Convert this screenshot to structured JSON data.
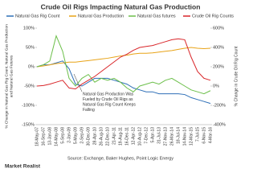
{
  "chart_data": {
    "type": "line",
    "title": "Crude Oil Rigs Impacting Natural Gas Production",
    "ylabel": [
      "% Change in Natural Gas Rig Count, Natural Gas Production",
      "and Natural Gas Futures"
    ],
    "y2label": "% Change in Crude Oil Rig Count",
    "annotation": [
      "Natural Gas Production Was",
      "Fueled by Crude Oil Rigs  as",
      "Natural Gas Rig Count Keeps",
      "Falling"
    ],
    "source": "Source: Exchange, Baker Hughes, Point Logic Energy",
    "brand": "Market Realist",
    "categories": [
      "18-May-07",
      "16-Sep-07",
      "13-Jan-08",
      "14-May-08",
      "5-Sep-08",
      "2-Jan-09",
      "5-May-09",
      "2-Sep-09",
      "30-Dec-09",
      "28-Apr-10",
      "26-Aug-10",
      "22-Dec-10",
      "21-Apr-11",
      "19-Aug-11",
      "16-Dec-11",
      "12-Apr-12",
      "10-Aug-12",
      "7-Dec-12",
      "5-Apr-13",
      "31-Jul-13",
      "27-Nov-13",
      "26-Mar-14",
      "18-Jul-14",
      "14-Nov-14",
      "12-Mar-15",
      "7-Jul-15",
      "6-Nov-15",
      "4-Mar-16"
    ],
    "series": [
      {
        "name": "Natural Gas Rig Count",
        "color": "#2e6fb7",
        "axis": "y",
        "values": [
          0,
          5,
          5,
          10,
          15,
          -5,
          -45,
          -50,
          -40,
          -30,
          -30,
          -30,
          -35,
          -40,
          -45,
          -55,
          -60,
          -65,
          -65,
          -70,
          -70,
          -70,
          -70,
          -72,
          -80,
          -85,
          -90,
          -95
        ]
      },
      {
        "name": "Natural Gas Production",
        "color": "#e8a317",
        "axis": "y",
        "values": [
          0,
          2,
          5,
          8,
          10,
          12,
          12,
          14,
          16,
          18,
          20,
          22,
          25,
          28,
          30,
          33,
          35,
          35,
          36,
          38,
          40,
          42,
          45,
          48,
          50,
          48,
          47,
          48
        ]
      },
      {
        "name": "Natural Gas futures",
        "color": "#6cbf4a",
        "axis": "y",
        "values": [
          0,
          5,
          15,
          80,
          40,
          -30,
          -50,
          -30,
          -20,
          -40,
          -30,
          -35,
          -30,
          -40,
          -55,
          -65,
          -50,
          -45,
          -40,
          -45,
          -35,
          -30,
          -40,
          -50,
          -60,
          -65,
          -70,
          -62
        ]
      },
      {
        "name": "Crude Oil Rig Counts",
        "color": "#d9262a",
        "axis": "y2",
        "values": [
          0,
          5,
          20,
          40,
          60,
          -20,
          -30,
          20,
          60,
          100,
          150,
          200,
          250,
          300,
          330,
          370,
          400,
          410,
          420,
          440,
          460,
          480,
          490,
          480,
          300,
          150,
          80,
          60
        ]
      }
    ],
    "ylim": [
      -150,
      100
    ],
    "yticks": [
      {
        "value": -150,
        "label": "-150%"
      },
      {
        "value": -100,
        "label": "-100%"
      },
      {
        "value": -50,
        "label": "-50%"
      },
      {
        "value": 0,
        "label": "0%"
      },
      {
        "value": 50,
        "label": "50%"
      },
      {
        "value": 100,
        "label": "100%"
      }
    ],
    "y2lim": [
      -400,
      600
    ],
    "y2ticks": [
      {
        "value": -400,
        "label": "-400%"
      },
      {
        "value": -200,
        "label": "-200%"
      },
      {
        "value": 0,
        "label": "0%"
      },
      {
        "value": 200,
        "label": "200%"
      },
      {
        "value": 400,
        "label": "400%"
      },
      {
        "value": 600,
        "label": "600%"
      }
    ]
  }
}
